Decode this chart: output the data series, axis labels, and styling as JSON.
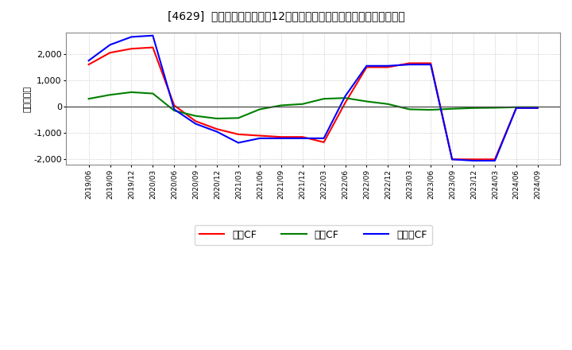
{
  "title": "[4629]  キャッシュフローの12か月移動合計の対前年同期増減額の推移",
  "ylabel": "（百万円）",
  "background_color": "#ffffff",
  "plot_bg_color": "#ffffff",
  "grid_color": "#bbbbbb",
  "x_labels": [
    "2019/06",
    "2019/09",
    "2019/12",
    "2020/03",
    "2020/06",
    "2020/09",
    "2020/12",
    "2021/03",
    "2021/06",
    "2021/09",
    "2021/12",
    "2022/03",
    "2022/06",
    "2022/09",
    "2022/12",
    "2023/03",
    "2023/06",
    "2023/09",
    "2023/12",
    "2024/03",
    "2024/06",
    "2024/09"
  ],
  "operating_cf": [
    1600,
    2050,
    2200,
    2250,
    50,
    -550,
    -850,
    -1050,
    -1100,
    -1150,
    -1150,
    -1350,
    150,
    1500,
    1500,
    1650,
    1650,
    -2000,
    -2000,
    -2000,
    -50,
    -50
  ],
  "investing_cf": [
    300,
    450,
    550,
    500,
    -150,
    -350,
    -450,
    -430,
    -100,
    50,
    100,
    300,
    330,
    200,
    100,
    -100,
    -120,
    -80,
    -50,
    -40,
    -20,
    -20
  ],
  "free_cf": [
    1750,
    2350,
    2650,
    2700,
    -100,
    -650,
    -950,
    -1370,
    -1200,
    -1200,
    -1200,
    -1200,
    400,
    1550,
    1550,
    1600,
    1600,
    -2000,
    -2050,
    -2050,
    -50,
    -50
  ],
  "operating_color": "#ff0000",
  "investing_color": "#008000",
  "free_color": "#0000ff",
  "ylim": [
    -2200,
    2800
  ],
  "yticks": [
    -2000,
    -1000,
    0,
    1000,
    2000
  ],
  "legend_labels": [
    "営業CF",
    "投資CF",
    "フリーCF"
  ]
}
